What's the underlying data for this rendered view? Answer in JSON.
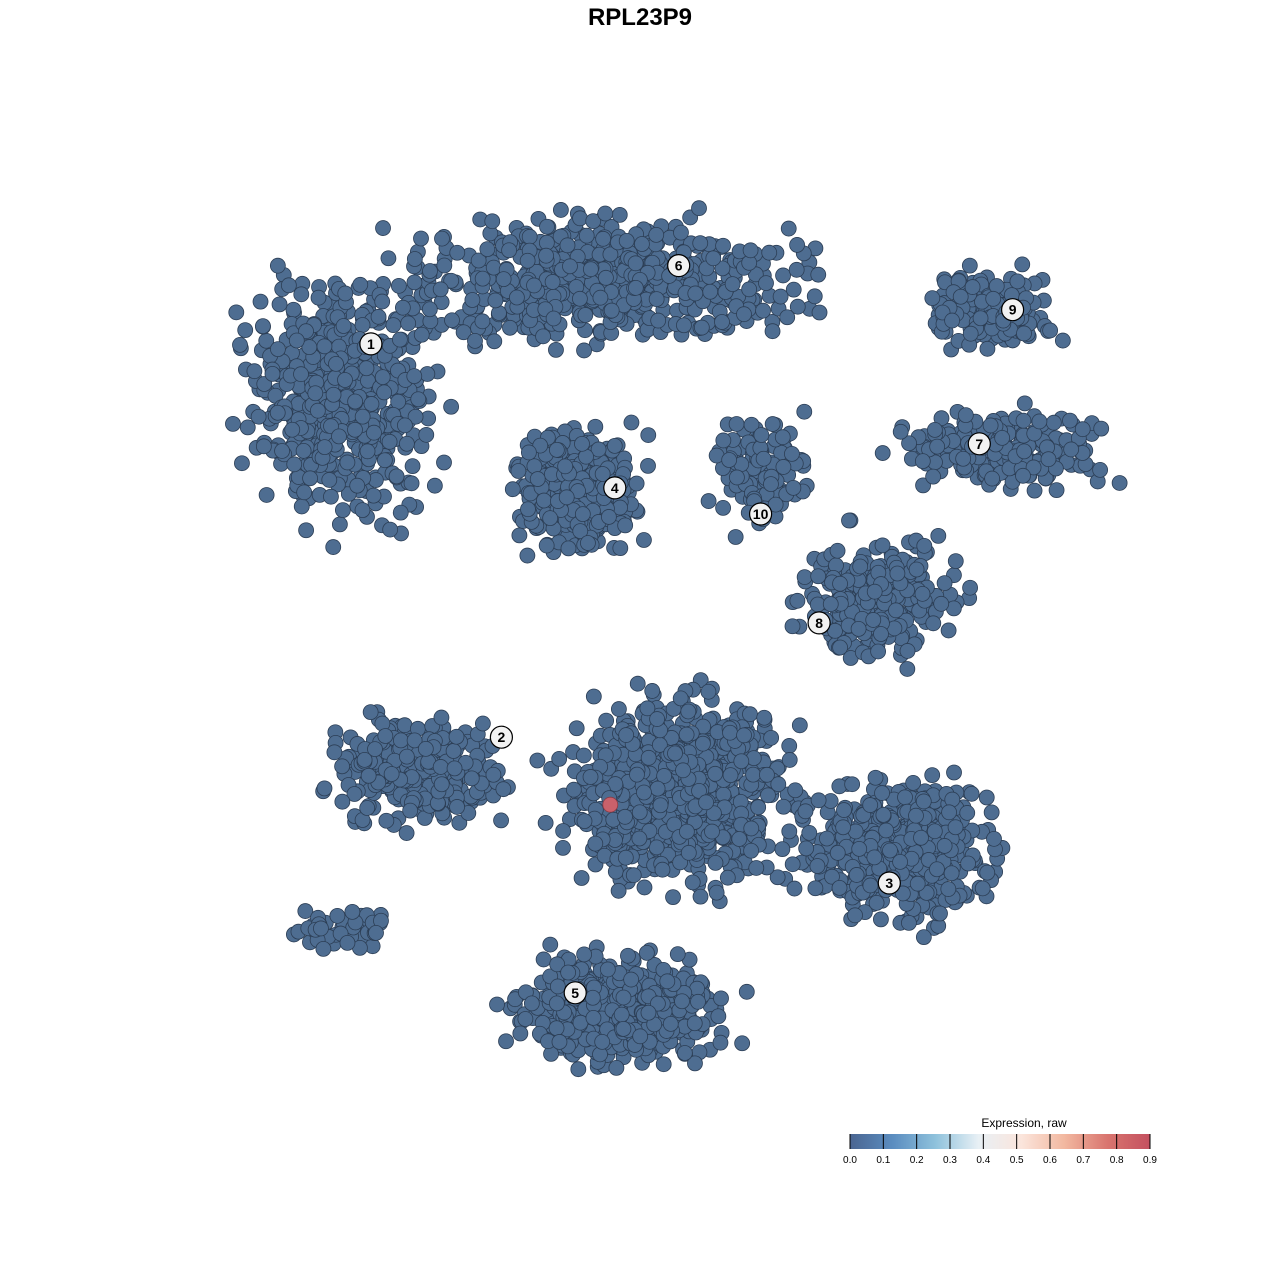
{
  "chart_data": {
    "type": "scatter",
    "title": "RPL23P9",
    "xlabel": "",
    "ylabel": "",
    "axes_visible": false,
    "grid": false,
    "point_color_default": "#4e6d91",
    "point_stroke": "#2c3e55",
    "clusters": [
      {
        "label": "1",
        "x": -29.9,
        "y": 32.9
      },
      {
        "label": "2",
        "x": -15.4,
        "y": -10.8
      },
      {
        "label": "3",
        "x": 27.7,
        "y": -27.0
      },
      {
        "label": "4",
        "x": -2.8,
        "y": 16.9
      },
      {
        "label": "5",
        "x": -7.2,
        "y": -39.2
      },
      {
        "label": "6",
        "x": 4.3,
        "y": 41.6
      },
      {
        "label": "7",
        "x": 37.7,
        "y": 21.8
      },
      {
        "label": "8",
        "x": 19.9,
        "y": 1.9
      },
      {
        "label": "9",
        "x": 41.4,
        "y": 36.7
      },
      {
        "label": "10",
        "x": 13.4,
        "y": 14.0
      }
    ],
    "default_expression": 0.0,
    "expressing_points": [
      {
        "x": -3.3,
        "y": -18.3,
        "value": 0.9
      }
    ],
    "colorbar": {
      "title": "Expression, raw",
      "placement": "bottom-right",
      "range": [
        0.0,
        0.9
      ],
      "ticks": [
        "0.0",
        "0.1",
        "0.2",
        "0.3",
        "0.4",
        "0.5",
        "0.6",
        "0.7",
        "0.8",
        "0.9"
      ],
      "colors": [
        "#4a6591",
        "#5b8dc0",
        "#8fc2dc",
        "#e8f0f5",
        "#fbe5dc",
        "#f2b8a0",
        "#d9756f",
        "#c4505f"
      ]
    }
  }
}
